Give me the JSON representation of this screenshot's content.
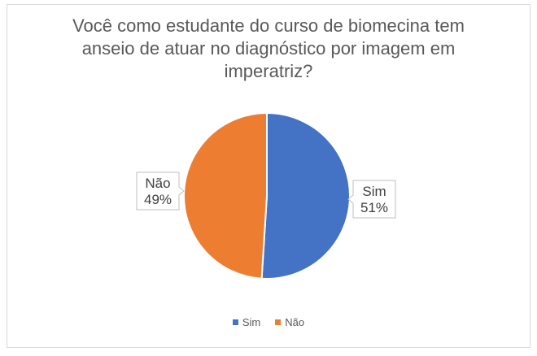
{
  "chart_data": {
    "type": "pie",
    "title": "Você como estudante do curso de biomecina tem anseio de atuar no diagnóstico por imagem em imperatriz?",
    "categories": [
      "Sim",
      "Não"
    ],
    "values": [
      51,
      49
    ],
    "data_labels": [
      {
        "category": "Sim",
        "percent": "51%"
      },
      {
        "category": "Não",
        "percent": "49%"
      }
    ],
    "colors": [
      "#4472c4",
      "#ed7d31"
    ],
    "legend": {
      "position": "bottom",
      "entries": [
        "Sim",
        "Não"
      ]
    }
  }
}
